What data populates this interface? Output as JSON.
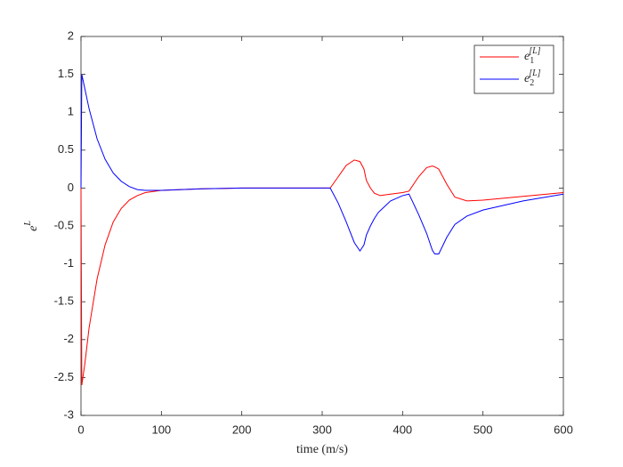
{
  "chart_data": {
    "type": "line",
    "x_label": "time (m/s)",
    "y_label": "eL",
    "xlim": [
      0,
      600
    ],
    "xticks": [
      0,
      100,
      200,
      300,
      400,
      500,
      600
    ],
    "ylim": [
      -3,
      2
    ],
    "yticks": [
      -3,
      -2.5,
      -2,
      -1.5,
      -1,
      -0.5,
      0,
      0.5,
      1,
      1.5,
      2
    ],
    "grid": false,
    "legend": "northeast",
    "x": [
      0,
      1,
      5,
      10,
      20,
      30,
      40,
      50,
      60,
      70,
      80,
      100,
      150,
      200,
      310,
      320,
      330,
      340,
      347,
      352,
      355,
      360,
      365,
      370,
      372,
      385,
      400,
      408,
      420,
      430,
      437,
      440,
      445,
      455,
      465,
      480,
      500,
      550,
      600
    ],
    "series": [
      {
        "name": "e1[L]",
        "color": "#ff0000",
        "values": [
          0,
          -2.6,
          -2.3,
          -1.85,
          -1.2,
          -0.75,
          -0.45,
          -0.27,
          -0.16,
          -0.1,
          -0.06,
          -0.03,
          -0.01,
          0,
          0,
          0.15,
          0.3,
          0.37,
          0.35,
          0.25,
          0.1,
          0.0,
          -0.07,
          -0.09,
          -0.1,
          -0.08,
          -0.06,
          -0.04,
          0.15,
          0.27,
          0.29,
          0.28,
          0.25,
          0.05,
          -0.12,
          -0.17,
          -0.16,
          -0.11,
          -0.06
        ]
      },
      {
        "name": "e2[L]",
        "color": "#0000ff",
        "values": [
          0,
          1.5,
          1.3,
          1.05,
          0.65,
          0.38,
          0.2,
          0.09,
          0.02,
          -0.02,
          -0.03,
          -0.03,
          -0.01,
          0,
          0,
          -0.2,
          -0.45,
          -0.72,
          -0.83,
          -0.75,
          -0.62,
          -0.5,
          -0.4,
          -0.32,
          -0.3,
          -0.17,
          -0.1,
          -0.08,
          -0.35,
          -0.6,
          -0.82,
          -0.87,
          -0.87,
          -0.65,
          -0.48,
          -0.37,
          -0.29,
          -0.17,
          -0.08
        ]
      }
    ]
  }
}
